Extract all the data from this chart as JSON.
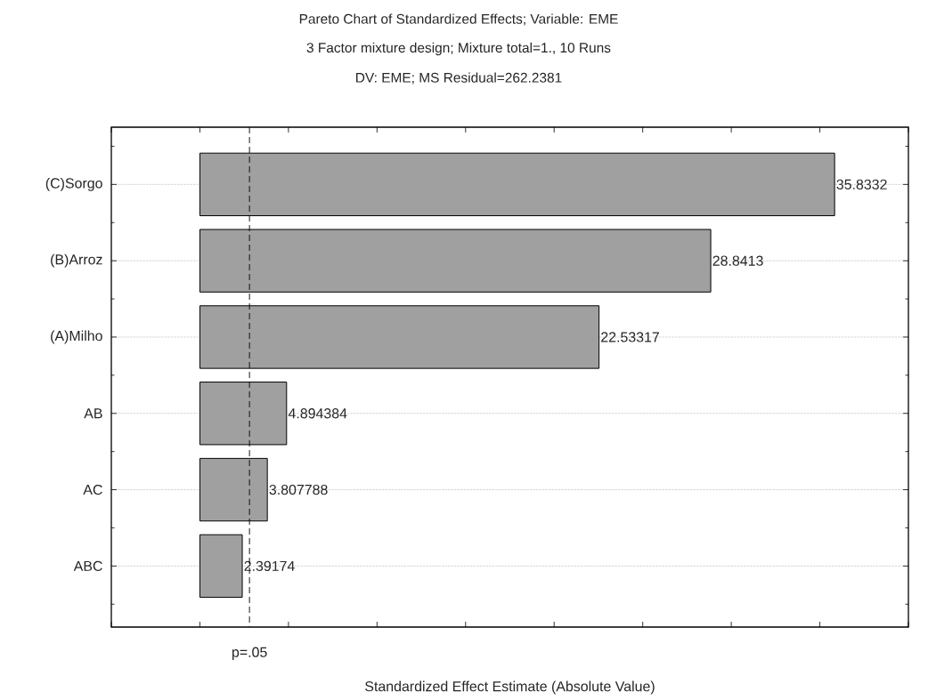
{
  "chart_data": {
    "type": "bar",
    "orientation": "horizontal",
    "title": "Pareto Chart of Standardized Effects; Variable: EME",
    "subtitle": "3 Factor mixture design; Mixture total=1., 10 Runs",
    "annotations": [
      "DV: EME; MS Residual=262.2381"
    ],
    "xlabel": "Standardized Effect Estimate (Absolute Value)",
    "categories": [
      "(C)Sorgo",
      "(B)Arroz",
      "(A)Milho",
      "AB",
      "AC",
      "ABC"
    ],
    "values": [
      35.8332,
      28.8413,
      22.53317,
      4.894384,
      3.807788,
      2.39174
    ],
    "color": "#a0a0a0",
    "data_labels": true,
    "xlim": [
      -5,
      40
    ],
    "xticks": [
      {
        "value": -5,
        "label": null
      },
      {
        "value": 0,
        "label": null
      },
      {
        "value": 5,
        "label": null
      },
      {
        "value": 10,
        "label": null
      },
      {
        "value": 15,
        "label": null
      },
      {
        "value": 20,
        "label": null
      },
      {
        "value": 25,
        "label": null
      },
      {
        "value": 30,
        "label": null
      },
      {
        "value": 35,
        "label": null
      },
      {
        "value": 40,
        "label": null
      }
    ],
    "tick_labels": "y",
    "ref_lines": [
      {
        "axis": "x",
        "value": 2.8,
        "label": "p=.05",
        "line_style": "dashed",
        "color": "#000000"
      }
    ],
    "grid": "y"
  }
}
